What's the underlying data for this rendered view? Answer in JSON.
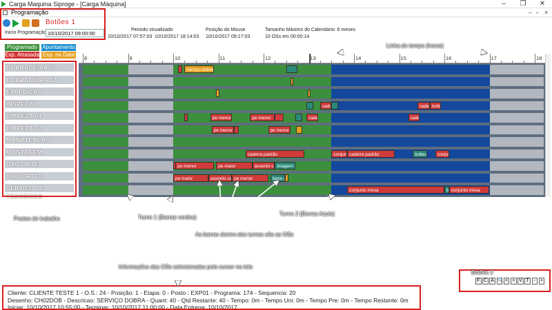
{
  "window": {
    "title": "Carga Maquina Siproge - [Carga Máquina]",
    "inner_title": "Programação"
  },
  "toolbar": {
    "label": "Botões 1"
  },
  "info": {
    "start_label": "Inicio Programação:",
    "start_value": "10/10/2017 09:00:00",
    "period_label": "Periodo visualizado",
    "period_from": "10/10/2017 07:57:03",
    "period_to": "10/10/2017 18:14:03",
    "mouse_label": "Posição do Mouse",
    "mouse_value": "10/10/2017 09:17:03",
    "max_label": "Tamanho Máximo do Calendario: 6 meses",
    "os_count": "10 OSs em 00:00:14"
  },
  "legend": {
    "programado": "Programado",
    "apontamento": "Apontamento",
    "atrasada": "Exp. Atrasada",
    "na_data": "Exp. na Data"
  },
  "colors": {
    "programado": "#3c8f3c",
    "apontamento": "#1a8fd0",
    "atrasada": "#d23232",
    "na_data": "#e8a020",
    "turno1": "#3c8f3c",
    "turno2": "#14489c",
    "idle": "#b3b8c0"
  },
  "hours": [
    "8",
    "9",
    "10",
    "11",
    "12",
    "13",
    "14",
    "15",
    "16",
    "17",
    "18"
  ],
  "workstations": [
    "DOBRADEIRA 01",
    "DOBRADEIRA 02",
    "EXPEDIÇÃO",
    "INSPEÇÃO",
    "LIMPEZA 01",
    "LIMPEZA 02",
    "MANUTENCAO",
    "MONTAGEM",
    "OXICORTE",
    "OXICORTE 2",
    "SERVIÇO DE TERCEIROS"
  ],
  "os_labels": {
    "r0_a": "serviço dobra",
    "r3_a": "cade",
    "r3_b": "cade",
    "r3_c": "trofe",
    "r4_a": "pe menor",
    "r4_b": "pe menor",
    "r4_c": "cade",
    "r4_d": "cade",
    "r5_a": "pe menor",
    "r5_b": "pe menor",
    "r7_a": "cadeira padrão",
    "r7_b": "conjunto",
    "r7_c": "cadeira padrão",
    "r7_d": "trofeu",
    "r7_e": "conjunt",
    "r8_a": "pe menor",
    "r8_b": "pe maior",
    "r8_c": "assento ca",
    "r8_d": "imagem t",
    "r9_a": "pe maior",
    "r9_b": "assento ca",
    "r9_c": "pe menor",
    "r9_d": "base gra",
    "r10_a": "conjunto mesa",
    "r10_b": "tr",
    "r10_c": "conjunto mesa"
  },
  "annotations": {
    "timeline": "Linha de tempo (horas)",
    "workstations": "Postos de trabalho",
    "turno1": "Turno 1 (Barras verdes)",
    "turno2": "Turno 2 (Barras Azuis)",
    "bars": "As barras dentro dos turnos são as OSs",
    "selected": "Informações das OSs selecionadas pelo cursor na tela",
    "buttons2": "Botões 2"
  },
  "os_details": {
    "line1": "Cliente: CLIENTE TESTE 1 - O.S.: 24 - Posição: 1 - Etapa: 0 - Posto : EXP01 - Programa: 174 - Sequencia: 20",
    "line2": "Desenho: CH02DOB - Descricao: SERVIÇO DOBRA - Quant: 40 - Qtd Restante: 40 - Tempo: 0m - Tempo Uni: 0m - Tempo Pre: 0m - Tempo Restante: 0m",
    "line3": "Iniciar: 10/10/2017 10:55:00 - Terminar: 10/10/2017 11:00:00 - Data Entrega: 10/10/2017"
  },
  "buttons2": [
    "F",
    "C",
    "A",
    "🔍",
    "<",
    ">",
    "V",
    "T",
    "-",
    "+"
  ]
}
